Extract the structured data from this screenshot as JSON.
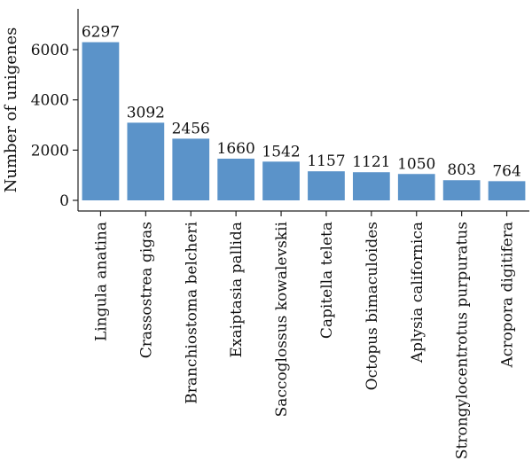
{
  "chart_data": {
    "type": "bar",
    "ylabel": "Number of unigenes",
    "xlabel": "",
    "title": "",
    "categories": [
      "Lingula anatina",
      "Crassostrea gigas",
      "Branchiostoma belcheri",
      "Exaiptasia pallida",
      "Saccoglossus kowalevskii",
      "Capitella teleta",
      "Octopus bimaculoides",
      "Aplysia californica",
      "Strongylocentrotus purpuratus",
      "Acropora digitifera"
    ],
    "values": [
      6297,
      3092,
      2456,
      1660,
      1542,
      1157,
      1121,
      1050,
      803,
      764
    ],
    "value_labels": [
      "6297",
      "3092",
      "2456",
      "1660",
      "1542",
      "1157",
      "1121",
      "1050",
      "803",
      "764"
    ],
    "yticks": [
      0,
      2000,
      4000,
      6000
    ],
    "ytick_labels": [
      "0",
      "2000",
      "4000",
      "6000"
    ],
    "ylim": [
      0,
      7000
    ],
    "bar_color": "#5b93c9",
    "grid": false
  }
}
